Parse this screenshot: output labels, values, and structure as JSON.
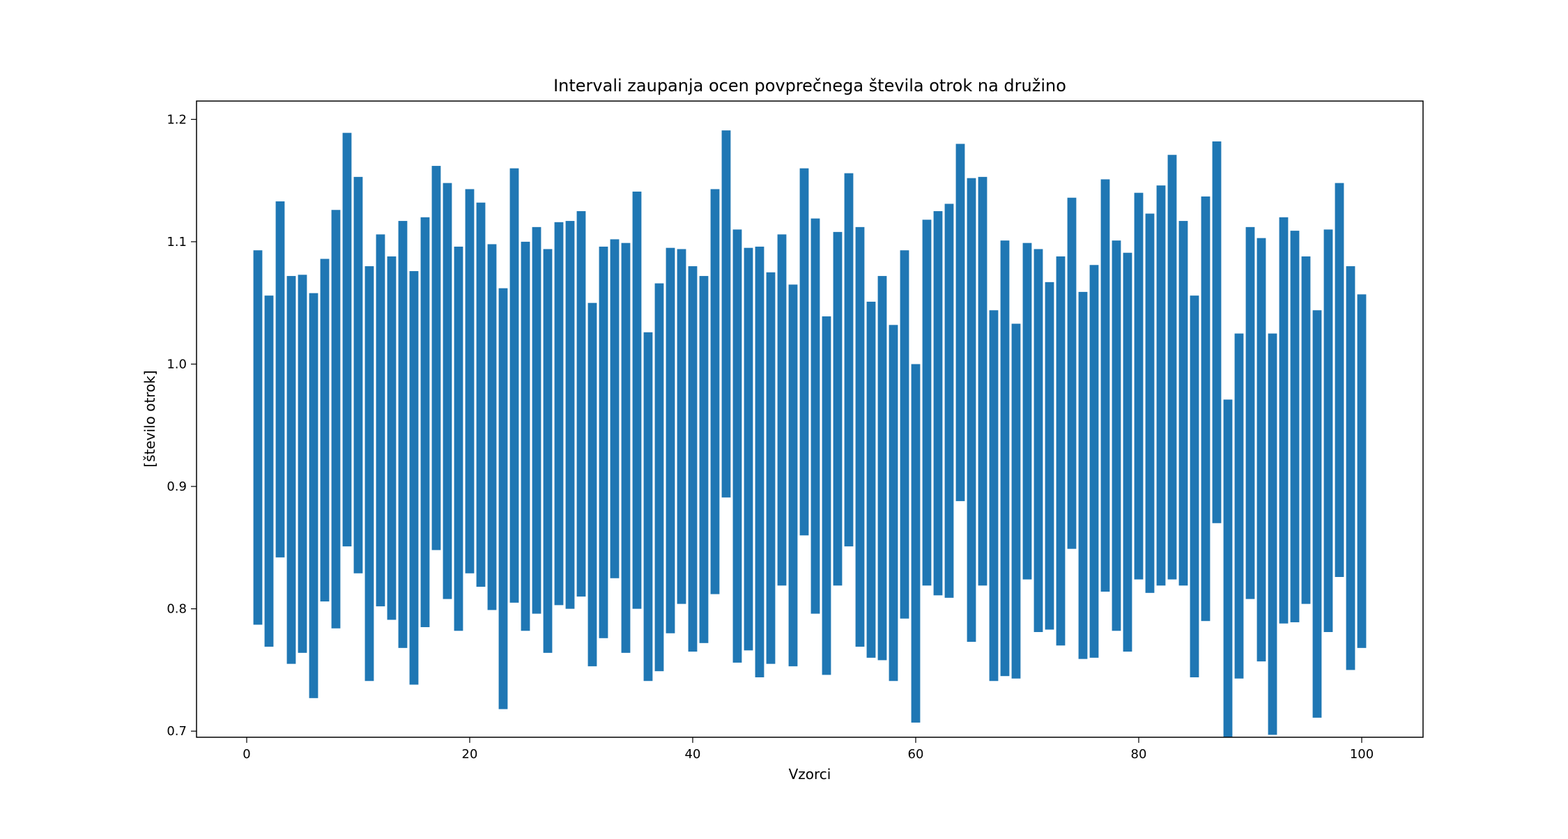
{
  "chart_data": {
    "type": "bar",
    "title": "Intervali zaupanja ocen povprečnega števila otrok na družino",
    "xlabel": "Vzorci",
    "ylabel": "[število otrok]",
    "xlim": [
      -4.5,
      105.5
    ],
    "ylim": [
      0.695,
      1.215
    ],
    "x_ticks": [
      0,
      20,
      40,
      60,
      80,
      100
    ],
    "y_ticks": [
      0.7,
      0.8,
      0.9,
      1.0,
      1.1,
      1.2
    ],
    "x_tick_labels": [
      "0",
      "20",
      "40",
      "60",
      "80",
      "100"
    ],
    "y_tick_labels": [
      "0.7",
      "0.8",
      "0.9",
      "1.0",
      "1.1",
      "1.2"
    ],
    "grid": false,
    "legend": null,
    "bar_color": "#1f77b4",
    "bar_width": 0.8,
    "x": [
      1,
      2,
      3,
      4,
      5,
      6,
      7,
      8,
      9,
      10,
      11,
      12,
      13,
      14,
      15,
      16,
      17,
      18,
      19,
      20,
      21,
      22,
      23,
      24,
      25,
      26,
      27,
      28,
      29,
      30,
      31,
      32,
      33,
      34,
      35,
      36,
      37,
      38,
      39,
      40,
      41,
      42,
      43,
      44,
      45,
      46,
      47,
      48,
      49,
      50,
      51,
      52,
      53,
      54,
      55,
      56,
      57,
      58,
      59,
      60,
      61,
      62,
      63,
      64,
      65,
      66,
      67,
      68,
      69,
      70,
      71,
      72,
      73,
      74,
      75,
      76,
      77,
      78,
      79,
      80,
      81,
      82,
      83,
      84,
      85,
      86,
      87,
      88,
      89,
      90,
      91,
      92,
      93,
      94,
      95,
      96,
      97,
      98,
      99,
      100
    ],
    "lower": [
      0.787,
      0.769,
      0.842,
      0.755,
      0.764,
      0.727,
      0.806,
      0.784,
      0.851,
      0.829,
      0.741,
      0.802,
      0.791,
      0.768,
      0.738,
      0.785,
      0.848,
      0.808,
      0.782,
      0.829,
      0.818,
      0.799,
      0.718,
      0.805,
      0.782,
      0.796,
      0.764,
      0.803,
      0.8,
      0.81,
      0.753,
      0.776,
      0.825,
      0.764,
      0.8,
      0.741,
      0.749,
      0.78,
      0.804,
      0.765,
      0.772,
      0.812,
      0.891,
      0.756,
      0.766,
      0.744,
      0.755,
      0.819,
      0.753,
      0.86,
      0.796,
      0.746,
      0.819,
      0.851,
      0.769,
      0.76,
      0.758,
      0.741,
      0.792,
      0.707,
      0.819,
      0.811,
      0.809,
      0.888,
      0.773,
      0.819,
      0.741,
      0.745,
      0.743,
      0.824,
      0.781,
      0.783,
      0.77,
      0.849,
      0.759,
      0.76,
      0.814,
      0.782,
      0.765,
      0.824,
      0.813,
      0.819,
      0.824,
      0.819,
      0.744,
      0.79,
      0.87,
      0.69,
      0.743,
      0.808,
      0.757,
      0.697,
      0.788,
      0.789,
      0.804,
      0.711,
      0.781,
      0.826,
      0.75,
      0.768
    ],
    "upper": [
      1.093,
      1.056,
      1.133,
      1.072,
      1.073,
      1.058,
      1.086,
      1.126,
      1.189,
      1.153,
      1.08,
      1.106,
      1.088,
      1.117,
      1.076,
      1.12,
      1.162,
      1.148,
      1.096,
      1.143,
      1.132,
      1.098,
      1.062,
      1.16,
      1.1,
      1.112,
      1.094,
      1.116,
      1.117,
      1.125,
      1.05,
      1.096,
      1.102,
      1.099,
      1.141,
      1.026,
      1.066,
      1.095,
      1.094,
      1.08,
      1.072,
      1.143,
      1.191,
      1.11,
      1.095,
      1.096,
      1.075,
      1.106,
      1.065,
      1.16,
      1.119,
      1.039,
      1.108,
      1.156,
      1.112,
      1.051,
      1.072,
      1.032,
      1.093,
      1.0,
      1.118,
      1.125,
      1.131,
      1.18,
      1.152,
      1.153,
      1.044,
      1.101,
      1.033,
      1.099,
      1.094,
      1.067,
      1.088,
      1.136,
      1.059,
      1.081,
      1.151,
      1.101,
      1.091,
      1.14,
      1.123,
      1.146,
      1.171,
      1.117,
      1.056,
      1.137,
      1.182,
      0.971,
      1.025,
      1.112,
      1.103,
      1.025,
      1.12,
      1.109,
      1.088,
      1.044,
      1.11,
      1.148,
      1.08,
      1.057
    ]
  }
}
